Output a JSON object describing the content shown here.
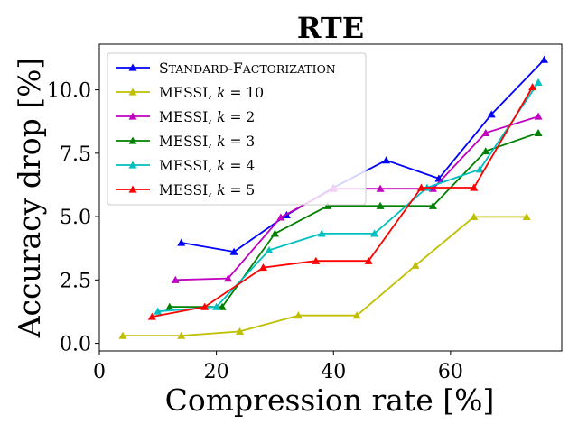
{
  "chart_data": {
    "type": "line",
    "title": "RTE",
    "xlabel": "Compression rate [%]",
    "ylabel": "Accuracy drop [%]",
    "xlim": [
      0,
      79
    ],
    "ylim": [
      -0.3,
      11.8
    ],
    "xticks": [
      0,
      20,
      40,
      60
    ],
    "xtick_labels": [
      "0",
      "20",
      "40",
      "60"
    ],
    "yticks": [
      0,
      2.5,
      5,
      7.5,
      10
    ],
    "ytick_labels": [
      "0.0",
      "2.5",
      "5.0",
      "7.5",
      "10.0"
    ],
    "grid": false,
    "legend_position": "upper-left",
    "marker": "triangle-up",
    "series": [
      {
        "name": "Standard-Factorization",
        "legend_main": "S",
        "legend_caps": "TANDARD",
        "legend_dash": "-F",
        "legend_caps2": "ACTORIZATION",
        "color": "#0000ff",
        "x": [
          14,
          23,
          32,
          40,
          49,
          58,
          67,
          76
        ],
        "y": [
          3.97,
          3.61,
          5.06,
          6.14,
          7.22,
          6.5,
          9.03,
          11.19
        ]
      },
      {
        "name": "MESSI, k = 10",
        "legend_main": "MESSI, ",
        "legend_k": "k",
        "legend_eq": " = 10",
        "color": "#bfbf00",
        "x": [
          4,
          14,
          24,
          34,
          44,
          54,
          64,
          73
        ],
        "y": [
          0.3,
          0.3,
          0.47,
          1.1,
          1.1,
          3.07,
          4.99,
          4.99
        ]
      },
      {
        "name": "MESSI, k = 2",
        "legend_main": "MESSI, ",
        "legend_k": "k",
        "legend_eq": " = 2",
        "color": "#bf00bf",
        "x": [
          13,
          22,
          31,
          40,
          48,
          57,
          66,
          75
        ],
        "y": [
          2.5,
          2.56,
          4.97,
          6.1,
          6.1,
          6.1,
          8.3,
          8.95
        ]
      },
      {
        "name": "MESSI, k = 3",
        "legend_main": "MESSI, ",
        "legend_k": "k",
        "legend_eq": " = 3",
        "color": "#008000",
        "x": [
          12,
          21,
          30,
          39,
          48,
          57,
          66,
          75
        ],
        "y": [
          1.44,
          1.44,
          4.33,
          5.42,
          5.42,
          5.42,
          7.58,
          8.3
        ]
      },
      {
        "name": "MESSI, k = 4",
        "legend_main": "MESSI, ",
        "legend_k": "k",
        "legend_eq": " = 4",
        "color": "#00bfbf",
        "x": [
          10,
          20,
          29,
          38,
          47,
          56,
          65,
          75
        ],
        "y": [
          1.26,
          1.44,
          3.67,
          4.33,
          4.33,
          6.14,
          6.86,
          10.29
        ]
      },
      {
        "name": "MESSI, k = 5",
        "legend_main": "MESSI, ",
        "legend_k": "k",
        "legend_eq": " = 5",
        "color": "#ff0000",
        "x": [
          9,
          18,
          28,
          37,
          46,
          55,
          64,
          74
        ],
        "y": [
          1.05,
          1.44,
          2.99,
          3.25,
          3.25,
          6.14,
          6.14,
          10.11
        ]
      }
    ]
  }
}
